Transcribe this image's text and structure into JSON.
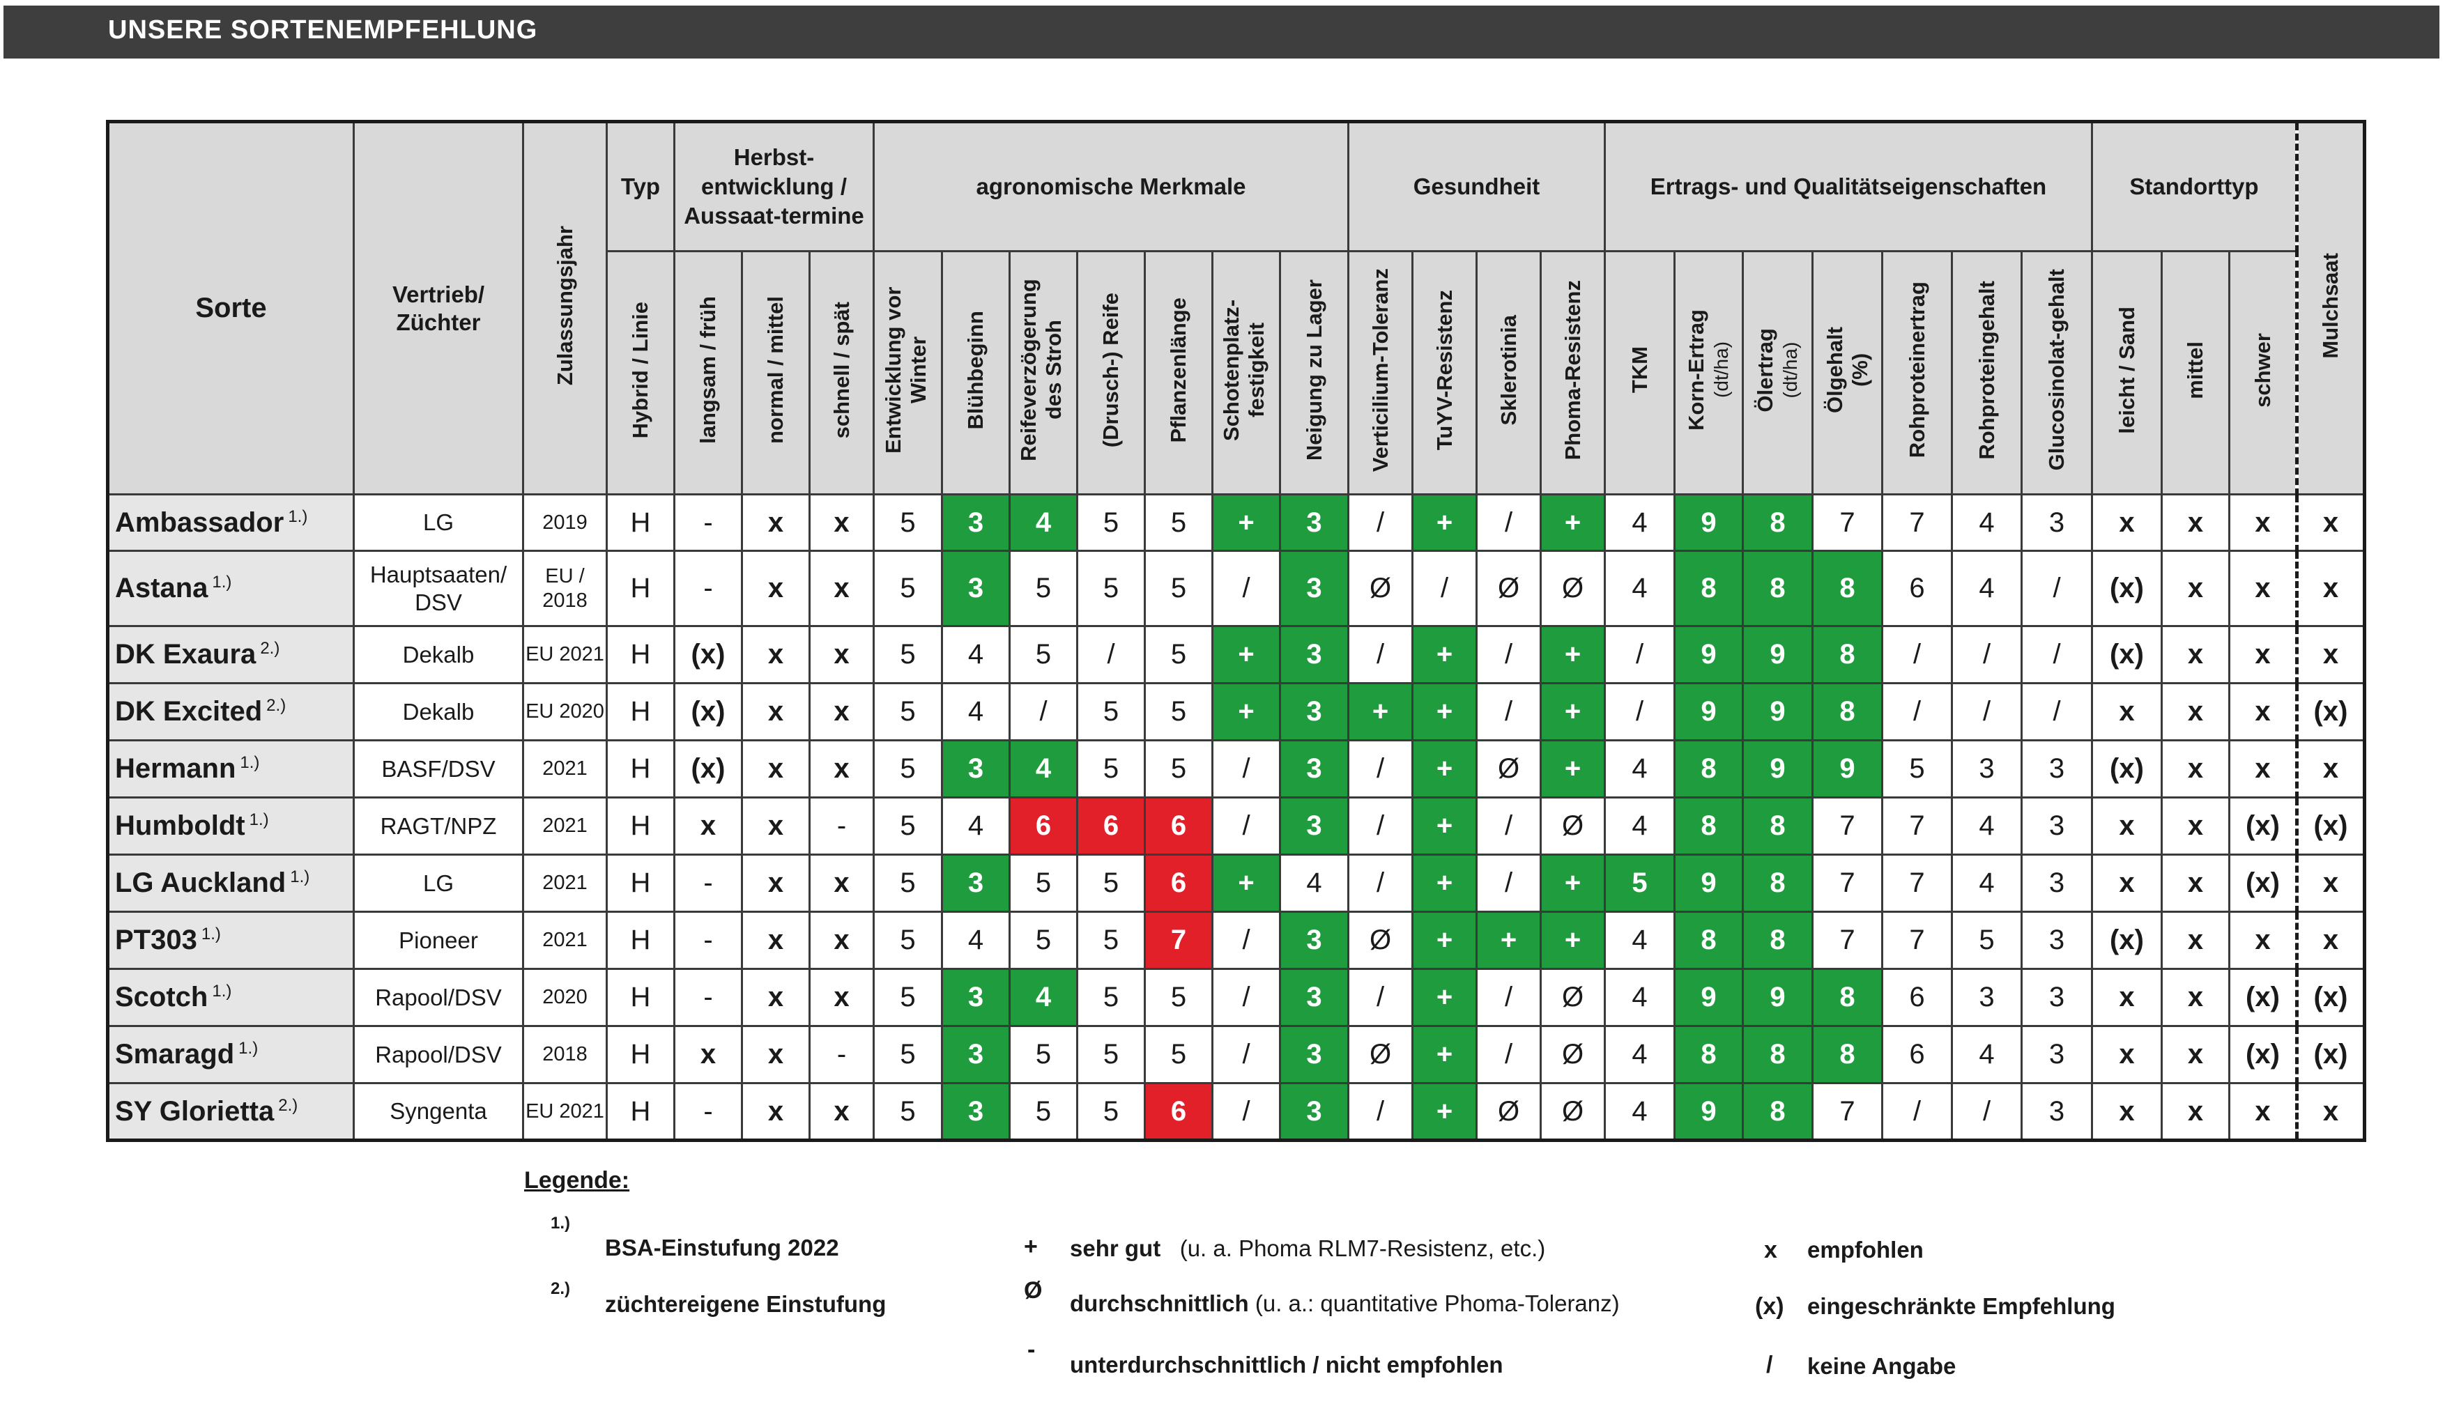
{
  "title": "UNSERE SORTENEMPFEHLUNG",
  "headers": {
    "sorte": "Sorte",
    "vertrieb": "Vertrieb/ Züchter",
    "zulassungsjahr": "Zulassungsjahr",
    "typ_group": "Typ",
    "typ": "Hybrid / Linie",
    "herbst_group": "Herbst-entwicklung / Aussaat-termine",
    "herbst": [
      "langsam / früh",
      "normal / mittel",
      "schnell / spät"
    ],
    "agro_group": "agronomische Merkmale",
    "agro": [
      "Entwicklung vor Winter",
      "Blühbeginn",
      "Reifeverzögerung des Stroh",
      "(Drusch-) Reife",
      "Pflanzenlänge",
      "Schotenplatz-festigkeit",
      "Neigung zu Lager"
    ],
    "gesundheit_group": "Gesundheit",
    "gesundheit": [
      "Verticilium-Toleranz",
      "TuYV-Resistenz",
      "Sklerotinia",
      "Phoma-Resistenz"
    ],
    "ertrag_group": "Ertrags- und Qualitätseigenschaften",
    "ertrag_tkm": "TKM",
    "ertrag_korn": "Korn-Ertrag",
    "ertrag_korn_unit": "(dt/ha)",
    "ertrag_oel": "Ölertrag",
    "ertrag_oel_unit": "(dt/ha)",
    "ertrag_oelgehalt": "Ölgehalt",
    "ertrag_oelgehalt_unit": "(%)",
    "ertrag_rohproteinertrag": "Rohproteinertrag",
    "ertrag_rohproteingehalt": "Rohproteingehalt",
    "ertrag_glucosinolat": "Glucosinolat-gehalt",
    "standort_group": "Standorttyp",
    "standort": [
      "leicht / Sand",
      "mittel",
      "schwer"
    ],
    "mulchsaat": "Mulchsaat"
  },
  "rows": [
    {
      "sorte": "Ambassador",
      "note": "1.)",
      "vertrieb": "LG",
      "jahr": "2019",
      "typ": "H",
      "herbst": [
        "-",
        "x",
        "x"
      ],
      "agro": [
        "5",
        "3",
        "4",
        "5",
        "5",
        "+",
        "3"
      ],
      "gesundheit": [
        "/",
        "+",
        "/",
        "+"
      ],
      "ertrag": [
        "4",
        "9",
        "8",
        "7",
        "7",
        "4",
        "3"
      ],
      "standort": [
        "x",
        "x",
        "x"
      ],
      "mulchsaat": "x"
    },
    {
      "sorte": "Astana",
      "note": "1.)",
      "vertrieb": "Hauptsaaten/ DSV",
      "jahr": "EU / 2018",
      "typ": "H",
      "herbst": [
        "-",
        "x",
        "x"
      ],
      "agro": [
        "5",
        "3",
        "5",
        "5",
        "5",
        "/",
        "3"
      ],
      "gesundheit": [
        "Ø",
        "/",
        "Ø",
        "Ø"
      ],
      "ertrag": [
        "4",
        "8",
        "8",
        "8",
        "6",
        "4",
        "/"
      ],
      "standort": [
        "(x)",
        "x",
        "x"
      ],
      "mulchsaat": "x"
    },
    {
      "sorte": "DK Exaura",
      "note": "2.)",
      "vertrieb": "Dekalb",
      "jahr": "EU 2021",
      "typ": "H",
      "herbst": [
        "(x)",
        "x",
        "x"
      ],
      "agro": [
        "5",
        "4",
        "5",
        "/",
        "5",
        "+",
        "3"
      ],
      "gesundheit": [
        "/",
        "+",
        "/",
        "+"
      ],
      "ertrag": [
        "/",
        "9",
        "9",
        "8",
        "/",
        "/",
        "/"
      ],
      "standort": [
        "(x)",
        "x",
        "x"
      ],
      "mulchsaat": "x"
    },
    {
      "sorte": "DK Excited",
      "note": "2.)",
      "vertrieb": "Dekalb",
      "jahr": "EU 2020",
      "typ": "H",
      "herbst": [
        "(x)",
        "x",
        "x"
      ],
      "agro": [
        "5",
        "4",
        "/",
        "5",
        "5",
        "+",
        "3"
      ],
      "gesundheit": [
        "+",
        "+",
        "/",
        "+"
      ],
      "ertrag": [
        "/",
        "9",
        "9",
        "8",
        "/",
        "/",
        "/"
      ],
      "standort": [
        "x",
        "x",
        "x"
      ],
      "mulchsaat": "(x)"
    },
    {
      "sorte": "Hermann",
      "note": "1.)",
      "vertrieb": "BASF/DSV",
      "jahr": "2021",
      "typ": "H",
      "herbst": [
        "(x)",
        "x",
        "x"
      ],
      "agro": [
        "5",
        "3",
        "4",
        "5",
        "5",
        "/",
        "3"
      ],
      "gesundheit": [
        "/",
        "+",
        "Ø",
        "+"
      ],
      "ertrag": [
        "4",
        "8",
        "9",
        "9",
        "5",
        "3",
        "3"
      ],
      "standort": [
        "(x)",
        "x",
        "x"
      ],
      "mulchsaat": "x"
    },
    {
      "sorte": "Humboldt",
      "note": "1.)",
      "vertrieb": "RAGT/NPZ",
      "jahr": "2021",
      "typ": "H",
      "herbst": [
        "x",
        "x",
        "-"
      ],
      "agro": [
        "5",
        "4",
        "6",
        "6",
        "6",
        "/",
        "3"
      ],
      "gesundheit": [
        "/",
        "+",
        "/",
        "Ø"
      ],
      "ertrag": [
        "4",
        "8",
        "8",
        "7",
        "7",
        "4",
        "3"
      ],
      "standort": [
        "x",
        "x",
        "(x)"
      ],
      "mulchsaat": "(x)"
    },
    {
      "sorte": "LG Auckland",
      "note": "1.)",
      "vertrieb": "LG",
      "jahr": "2021",
      "typ": "H",
      "herbst": [
        "-",
        "x",
        "x"
      ],
      "agro": [
        "5",
        "3",
        "5",
        "5",
        "6",
        "+",
        "4"
      ],
      "gesundheit": [
        "/",
        "+",
        "/",
        "+"
      ],
      "ertrag": [
        "5",
        "9",
        "8",
        "7",
        "7",
        "4",
        "3"
      ],
      "standort": [
        "x",
        "x",
        "(x)"
      ],
      "mulchsaat": "x"
    },
    {
      "sorte": "PT303",
      "note": "1.)",
      "vertrieb": "Pioneer",
      "jahr": "2021",
      "typ": "H",
      "herbst": [
        "-",
        "x",
        "x"
      ],
      "agro": [
        "5",
        "4",
        "5",
        "5",
        "7",
        "/",
        "3"
      ],
      "gesundheit": [
        "Ø",
        "+",
        "+",
        "+"
      ],
      "ertrag": [
        "4",
        "8",
        "8",
        "7",
        "7",
        "5",
        "3"
      ],
      "standort": [
        "(x)",
        "x",
        "x"
      ],
      "mulchsaat": "x"
    },
    {
      "sorte": "Scotch",
      "note": "1.)",
      "vertrieb": "Rapool/DSV",
      "jahr": "2020",
      "typ": "H",
      "herbst": [
        "-",
        "x",
        "x"
      ],
      "agro": [
        "5",
        "3",
        "4",
        "5",
        "5",
        "/",
        "3"
      ],
      "gesundheit": [
        "/",
        "+",
        "/",
        "Ø"
      ],
      "ertrag": [
        "4",
        "9",
        "9",
        "8",
        "6",
        "3",
        "3"
      ],
      "standort": [
        "x",
        "x",
        "(x)"
      ],
      "mulchsaat": "(x)"
    },
    {
      "sorte": "Smaragd",
      "note": "1.)",
      "vertrieb": "Rapool/DSV",
      "jahr": "2018",
      "typ": "H",
      "herbst": [
        "x",
        "x",
        "-"
      ],
      "agro": [
        "5",
        "3",
        "5",
        "5",
        "5",
        "/",
        "3"
      ],
      "gesundheit": [
        "Ø",
        "+",
        "/",
        "Ø"
      ],
      "ertrag": [
        "4",
        "8",
        "8",
        "8",
        "6",
        "4",
        "3"
      ],
      "standort": [
        "x",
        "x",
        "(x)"
      ],
      "mulchsaat": "(x)"
    },
    {
      "sorte": "SY Glorietta",
      "note": "2.)",
      "vertrieb": "Syngenta",
      "jahr": "EU 2021",
      "typ": "H",
      "herbst": [
        "-",
        "x",
        "x"
      ],
      "agro": [
        "5",
        "3",
        "5",
        "5",
        "6",
        "/",
        "3"
      ],
      "gesundheit": [
        "/",
        "+",
        "Ø",
        "Ø"
      ],
      "ertrag": [
        "4",
        "9",
        "8",
        "7",
        "/",
        "/",
        "3"
      ],
      "standort": [
        "x",
        "x",
        "x"
      ],
      "mulchsaat": "x"
    }
  ],
  "legend": {
    "title": "Legende:",
    "note1_mark": "1.)",
    "note1_text": "BSA-Einstufung 2022",
    "note2_mark": "2.)",
    "note2_text": "züchtereigene Einstufung",
    "plus_sym": "+",
    "plus_text": "sehr gut",
    "plus_note": "(u. a. Phoma RLM7-Resistenz, etc.)",
    "avg_sym": "Ø",
    "avg_text": "durchschnittlich",
    "avg_note": "(u. a.:   quantitative Phoma-Toleranz)",
    "minus_sym": "-",
    "minus_text": "unterdurchschnittlich / nicht empfohlen",
    "x_sym": "x",
    "x_text": "empfohlen",
    "xp_sym": "(x)",
    "xp_text": "eingeschränkte Empfehlung",
    "slash_sym": "/",
    "slash_text": "keine Angabe"
  },
  "colors": {
    "good": "#1f9c3e",
    "bad": "#e2202a",
    "header_bg": "#d9d9d9",
    "title_bar": "#3e3e3e"
  },
  "cell_colors": {
    "agro": [
      [
        "",
        "g",
        "g",
        "",
        "",
        "g",
        "g"
      ],
      [
        "",
        "g",
        "",
        "",
        "",
        "",
        "g"
      ],
      [
        "",
        "",
        "",
        "",
        "",
        "g",
        "g"
      ],
      [
        "",
        "",
        "",
        "",
        "",
        "g",
        "g"
      ],
      [
        "",
        "g",
        "g",
        "",
        "",
        "",
        "g"
      ],
      [
        "",
        "",
        "r",
        "r",
        "r",
        "",
        "g"
      ],
      [
        "",
        "g",
        "",
        "",
        "r",
        "g",
        ""
      ],
      [
        "",
        "",
        "",
        "",
        "r",
        "",
        "g"
      ],
      [
        "",
        "g",
        "g",
        "",
        "",
        "",
        "g"
      ],
      [
        "",
        "g",
        "",
        "",
        "",
        "",
        "g"
      ],
      [
        "",
        "g",
        "",
        "",
        "r",
        "",
        "g"
      ]
    ],
    "gesundheit": [
      [
        "",
        "g",
        "",
        "g"
      ],
      [
        "",
        "",
        "",
        ""
      ],
      [
        "",
        "g",
        "",
        "g"
      ],
      [
        "g",
        "g",
        "",
        "g"
      ],
      [
        "",
        "g",
        "",
        "g"
      ],
      [
        "",
        "g",
        "",
        ""
      ],
      [
        "",
        "g",
        "",
        "g"
      ],
      [
        "",
        "g",
        "g",
        "g"
      ],
      [
        "",
        "g",
        "",
        ""
      ],
      [
        "",
        "g",
        "",
        ""
      ],
      [
        "",
        "g",
        "",
        ""
      ]
    ],
    "ertrag": [
      [
        "",
        "g",
        "g",
        "",
        "",
        "",
        ""
      ],
      [
        "",
        "g",
        "g",
        "g",
        "",
        "",
        ""
      ],
      [
        "",
        "g",
        "g",
        "g",
        "",
        "",
        ""
      ],
      [
        "",
        "g",
        "g",
        "g",
        "",
        "",
        ""
      ],
      [
        "",
        "g",
        "g",
        "g",
        "",
        "",
        ""
      ],
      [
        "",
        "g",
        "g",
        "",
        "",
        "",
        ""
      ],
      [
        "g",
        "g",
        "g",
        "",
        "",
        "",
        ""
      ],
      [
        "",
        "g",
        "g",
        "",
        "",
        "",
        ""
      ],
      [
        "",
        "g",
        "g",
        "g",
        "",
        "",
        ""
      ],
      [
        "",
        "g",
        "g",
        "g",
        "",
        "",
        ""
      ],
      [
        "",
        "g",
        "g",
        "",
        "",
        "",
        ""
      ]
    ]
  }
}
